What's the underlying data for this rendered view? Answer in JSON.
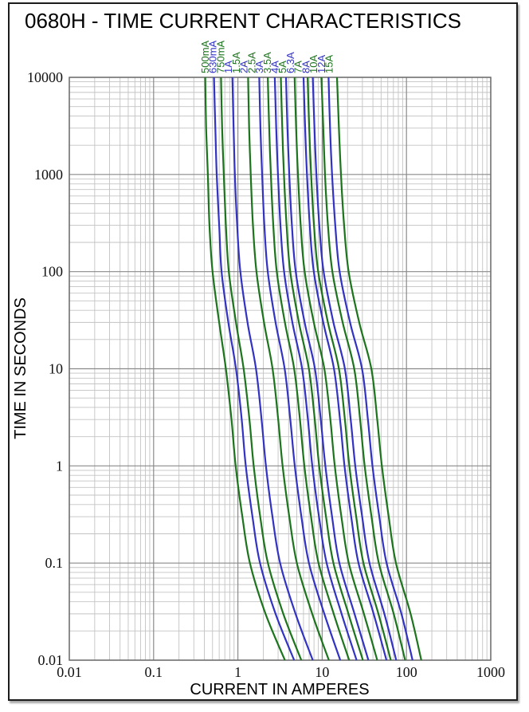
{
  "page": {
    "title": "0680H - TIME CURRENT CHARACTERISTICS"
  },
  "chart_data": {
    "type": "line",
    "title": "0680H - TIME CURRENT CHARACTERISTICS",
    "xlabel": "CURRENT IN AMPERES",
    "ylabel": "TIME IN SECONDS",
    "x_scale": "log",
    "y_scale": "log",
    "xlim": [
      0.01,
      1000
    ],
    "ylim": [
      0.01,
      10000
    ],
    "x_tick_labels": [
      "0.01",
      "0.1",
      "1",
      "10",
      "100",
      "1000"
    ],
    "y_tick_labels": [
      "10000",
      "1000",
      "100",
      "10",
      "1",
      "0.1",
      "0.01"
    ],
    "grid": {
      "major": true,
      "minor": true,
      "color_major": "#8a8a8a",
      "color_minor": "#c3c3c3"
    },
    "legend_position": "rotated-labels-above-plot",
    "colors": {
      "green": "#1c741c",
      "blue": "#3232c4"
    },
    "times_s": [
      10000,
      3000,
      1000,
      300,
      100,
      30,
      10,
      3,
      1,
      0.3,
      0.1,
      0.03,
      0.01
    ],
    "series": [
      {
        "label": "500mA",
        "color": "green",
        "amps": [
          0.41,
          0.42,
          0.44,
          0.46,
          0.5,
          0.6,
          0.72,
          0.84,
          0.94,
          1.13,
          1.39,
          2.13,
          3.61
        ]
      },
      {
        "label": "630mA",
        "color": "blue",
        "amps": [
          0.52,
          0.54,
          0.56,
          0.6,
          0.64,
          0.77,
          0.95,
          1.11,
          1.24,
          1.49,
          1.83,
          2.8,
          4.65
        ]
      },
      {
        "label": "750mA",
        "color": "green",
        "amps": [
          0.63,
          0.65,
          0.68,
          0.72,
          0.78,
          0.95,
          1.17,
          1.37,
          1.54,
          1.84,
          2.27,
          3.46,
          5.65
        ]
      },
      {
        "label": "1A",
        "color": "blue",
        "amps": [
          0.86,
          0.89,
          0.92,
          0.98,
          1.07,
          1.3,
          1.64,
          1.91,
          2.15,
          2.57,
          3.17,
          4.83,
          7.73
        ]
      },
      {
        "label": "1.5A",
        "color": "green",
        "amps": [
          1.32,
          1.36,
          1.42,
          1.51,
          1.66,
          2.04,
          2.58,
          3.01,
          3.39,
          4.07,
          5.01,
          7.61,
          12.0
        ]
      },
      {
        "label": "2A",
        "color": "blue",
        "amps": [
          1.79,
          1.85,
          1.94,
          2.06,
          2.26,
          2.8,
          3.59,
          4.19,
          4.73,
          5.67,
          6.97,
          10.6,
          16.4
        ]
      },
      {
        "label": "2.5A",
        "color": "green",
        "amps": [
          2.26,
          2.35,
          2.46,
          2.63,
          2.89,
          3.61,
          4.65,
          5.45,
          6.14,
          7.37,
          9.05,
          13.7,
          20.9
        ]
      },
      {
        "label": "3A",
        "color": "blue",
        "amps": [
          2.74,
          2.85,
          2.99,
          3.2,
          3.53,
          4.43,
          5.78,
          6.77,
          7.63,
          9.17,
          11.3,
          17.0,
          25.6
        ]
      },
      {
        "label": "3.5A",
        "color": "green",
        "amps": [
          3.23,
          3.36,
          3.52,
          3.78,
          4.18,
          5.3,
          6.96,
          8.16,
          9.21,
          11.1,
          13.6,
          20.5,
          30.4
        ]
      },
      {
        "label": "4A",
        "color": "blue",
        "amps": [
          3.72,
          3.87,
          4.07,
          4.37,
          4.85,
          6.19,
          8.2,
          9.61,
          10.9,
          13.1,
          16.0,
          24.2,
          35.3
        ]
      },
      {
        "label": "5A",
        "color": "green",
        "amps": [
          4.71,
          4.91,
          5.16,
          5.56,
          6.19,
          7.95,
          10.6,
          12.5,
          14.1,
          16.9,
          20.7,
          31.3,
          45.0
        ]
      },
      {
        "label": "6.3A",
        "color": "blue",
        "amps": [
          6.01,
          6.28,
          6.6,
          7.12,
          7.95,
          10.3,
          13.8,
          16.3,
          18.4,
          22.1,
          27.0,
          40.8,
          57.9
        ]
      },
      {
        "label": "7A",
        "color": "green",
        "amps": [
          6.72,
          7.02,
          7.39,
          7.99,
          8.96,
          11.7,
          15.8,
          18.6,
          21.0,
          25.3,
          30.9,
          46.5,
          65.2
        ]
      },
      {
        "label": "8A",
        "color": "blue",
        "amps": [
          7.74,
          8.09,
          8.53,
          9.24,
          10.4,
          13.6,
          18.6,
          21.8,
          24.7,
          29.8,
          36.4,
          54.7,
          75.6
        ]
      },
      {
        "label": "10A",
        "color": "green",
        "amps": [
          9.79,
          10.3,
          10.8,
          11.7,
          13.2,
          17.5,
          24.0,
          28.2,
          31.9,
          38.5,
          47.0,
          70.6,
          96.4
        ]
      },
      {
        "label": "12A",
        "color": "blue",
        "amps": [
          11.9,
          12.4,
          13.1,
          14.3,
          16.1,
          21.4,
          29.7,
          34.9,
          39.5,
          47.6,
          58.1,
          87.2,
          118
        ]
      },
      {
        "label": "15A",
        "color": "green",
        "amps": [
          15.0,
          15.8,
          16.7,
          18.2,
          20.6,
          27.5,
          38.3,
          45.0,
          51.0,
          61.5,
          75.0,
          112,
          150
        ]
      }
    ]
  }
}
